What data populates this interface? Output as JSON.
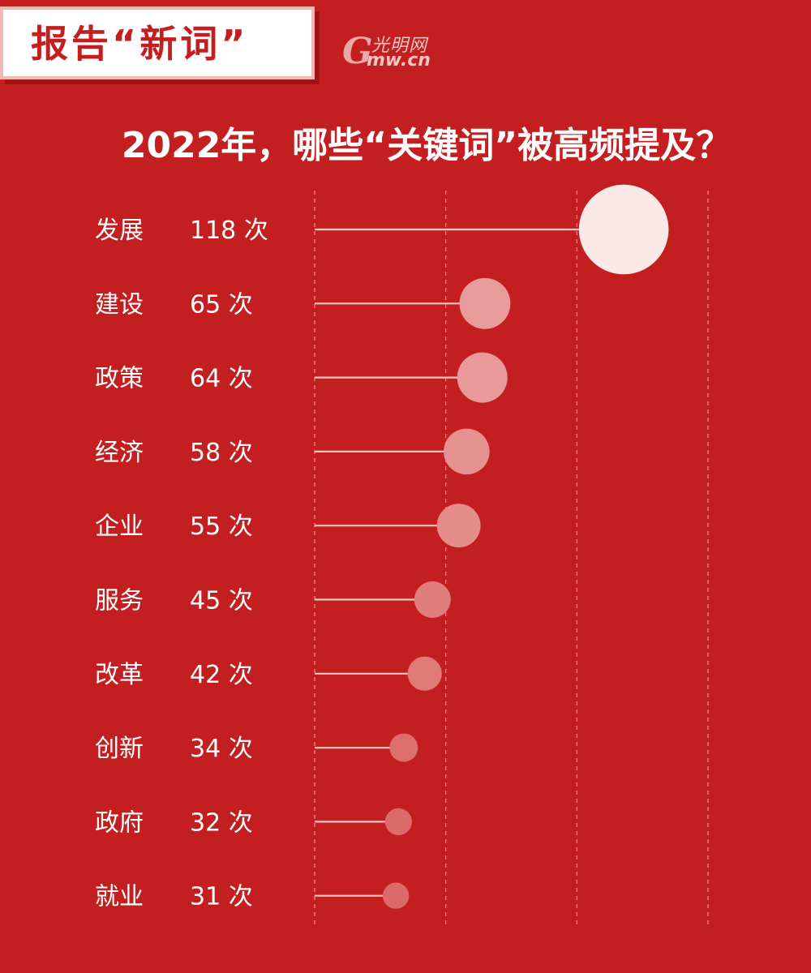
{
  "banner": {
    "text": "报告“新词”"
  },
  "logo": {
    "cn": "光明网",
    "url": "mw.cn",
    "g": "G"
  },
  "title": "2022年，哪些“关键词”被高频提及？",
  "colors": {
    "background": "#c41f20",
    "bubble_light": "#fbe9e8",
    "bubble_dark": "#db6a68",
    "line": "#f3c5c2",
    "grid": "#e58a87"
  },
  "chart_data": {
    "type": "lollipop-bubble",
    "title": "2022年，哪些“关键词”被高频提及？",
    "unit": "次",
    "grid": "vertical dashed",
    "categories": [
      "发展",
      "建设",
      "政策",
      "经济",
      "企业",
      "服务",
      "改革",
      "创新",
      "政府",
      "就业"
    ],
    "values": [
      118,
      65,
      64,
      58,
      55,
      45,
      42,
      34,
      32,
      31
    ],
    "labels": [
      "118 次",
      "65 次",
      "64 次",
      "58 次",
      "55 次",
      "45 次",
      "42 次",
      "34 次",
      "32 次",
      "31 次"
    ]
  }
}
